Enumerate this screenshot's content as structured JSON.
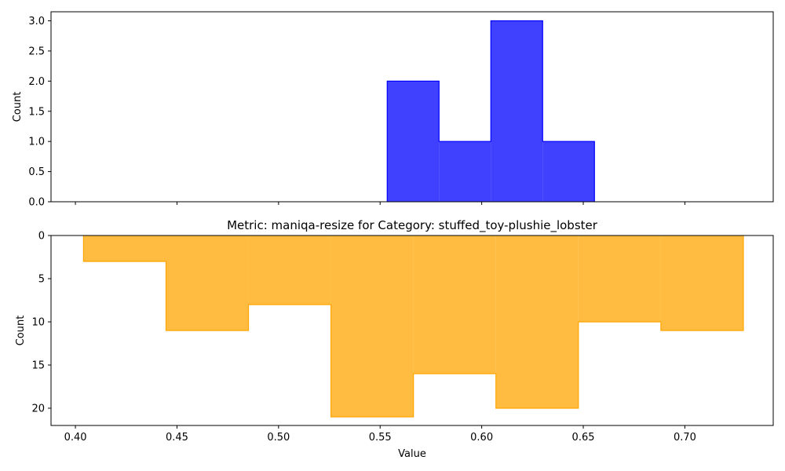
{
  "chart_data": [
    {
      "type": "histogram",
      "orientation": "upright",
      "color": "#0000ff",
      "fill_opacity": 0.75,
      "xlim": [
        0.388,
        0.7435
      ],
      "ylim": [
        0,
        3.15
      ],
      "yticks": [
        0.0,
        0.5,
        1.0,
        1.5,
        2.0,
        2.5,
        3.0
      ],
      "ytick_labels": [
        "0.0",
        "0.5",
        "1.0",
        "1.5",
        "2.0",
        "2.5",
        "3.0"
      ],
      "ylabel": "Count",
      "xlabel": "",
      "title": "",
      "x_tick_labels_visible": false,
      "bins": [
        {
          "x0": 0.5535,
          "x1": 0.579,
          "count": 2
        },
        {
          "x0": 0.579,
          "x1": 0.6045,
          "count": 1
        },
        {
          "x0": 0.6045,
          "x1": 0.63,
          "count": 3
        },
        {
          "x0": 0.63,
          "x1": 0.6555,
          "count": 1
        }
      ]
    },
    {
      "type": "histogram",
      "orientation": "inverted",
      "color": "#ffa500",
      "fill_opacity": 0.75,
      "xlim": [
        0.388,
        0.7435
      ],
      "ylim": [
        0,
        22
      ],
      "yticks": [
        0,
        5,
        10,
        15,
        20
      ],
      "ytick_labels": [
        "0",
        "5",
        "10",
        "15",
        "20"
      ],
      "ylabel": "Count",
      "xlabel": "Value",
      "title": "Metric: maniqa-resize for Category: stuffed_toy-plushie_lobster",
      "xticks": [
        0.4,
        0.45,
        0.5,
        0.55,
        0.6,
        0.65,
        0.7
      ],
      "xtick_labels": [
        "0.40",
        "0.45",
        "0.50",
        "0.55",
        "0.60",
        "0.65",
        "0.70"
      ],
      "bins": [
        {
          "x0": 0.404,
          "x1": 0.4446,
          "count": 3
        },
        {
          "x0": 0.4446,
          "x1": 0.4852,
          "count": 11
        },
        {
          "x0": 0.4852,
          "x1": 0.5258,
          "count": 8
        },
        {
          "x0": 0.5258,
          "x1": 0.5664,
          "count": 21
        },
        {
          "x0": 0.5664,
          "x1": 0.607,
          "count": 16
        },
        {
          "x0": 0.607,
          "x1": 0.6476,
          "count": 20
        },
        {
          "x0": 0.6476,
          "x1": 0.6882,
          "count": 10
        },
        {
          "x0": 0.6882,
          "x1": 0.7288,
          "count": 11
        }
      ]
    }
  ]
}
